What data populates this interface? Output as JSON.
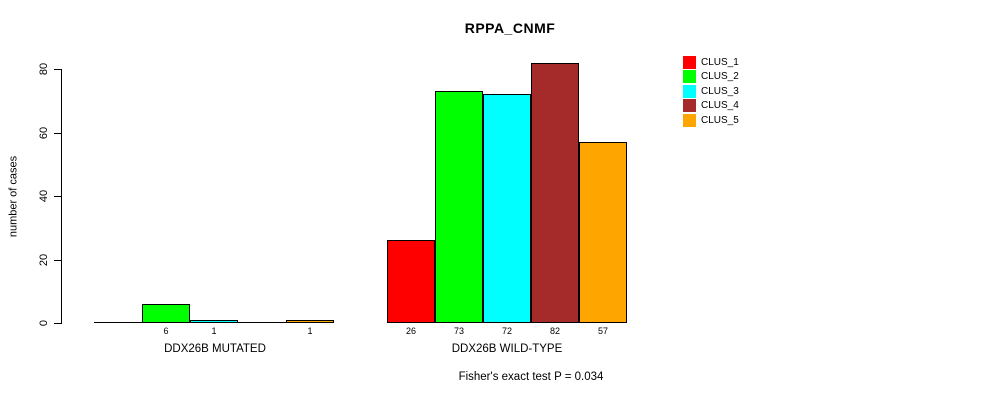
{
  "chart_data": {
    "type": "bar",
    "title": "RPPA_CNMF",
    "ylabel": "number of cases",
    "xlabel": "",
    "yticks": [
      0,
      20,
      40,
      60,
      80
    ],
    "ylim": [
      0,
      82
    ],
    "grid": false,
    "legend_position": "right",
    "series": [
      {
        "name": "CLUS_1",
        "color": "#FF0000"
      },
      {
        "name": "CLUS_2",
        "color": "#00FF00"
      },
      {
        "name": "CLUS_3",
        "color": "#00FFFF"
      },
      {
        "name": "CLUS_4",
        "color": "#A52A2A"
      },
      {
        "name": "CLUS_5",
        "color": "#FFA500"
      }
    ],
    "groups": [
      {
        "label": "DDX26B MUTATED",
        "values": [
          0,
          6,
          1,
          0,
          1
        ],
        "bar_labels": [
          "",
          "6",
          "1",
          "",
          "1"
        ]
      },
      {
        "label": "DDX26B WILD-TYPE",
        "values": [
          26,
          73,
          72,
          82,
          57
        ],
        "bar_labels": [
          "26",
          "73",
          "72",
          "82",
          "57"
        ]
      }
    ],
    "subtitle": "Fisher's exact test P = 0.034"
  }
}
